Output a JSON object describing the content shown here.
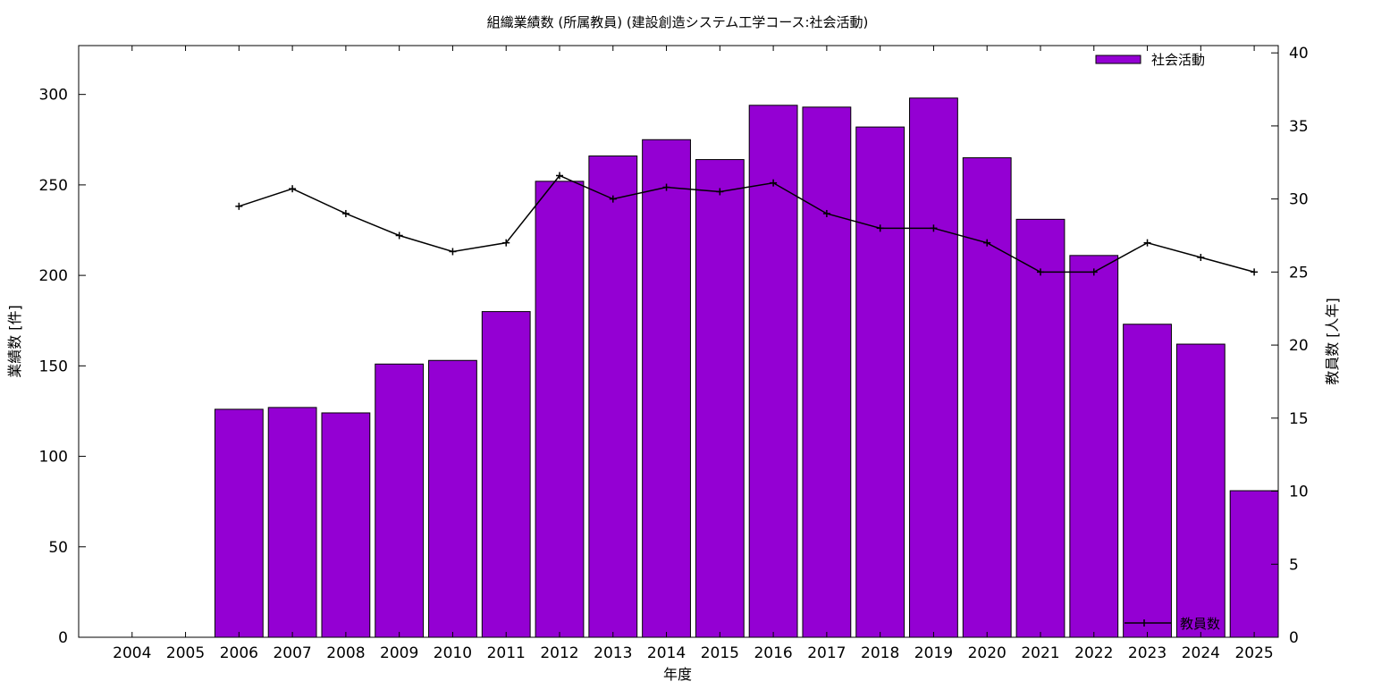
{
  "chart_data": {
    "type": "bar",
    "title": "組織業績数 (所属教員) (建設創造システム工学コース:社会活動)",
    "xlabel": "年度",
    "ylabel": "業績数 [件]",
    "y2label": "教員数 [人年]",
    "categories": [
      "2004",
      "2005",
      "2006",
      "2007",
      "2008",
      "2009",
      "2010",
      "2011",
      "2012",
      "2013",
      "2014",
      "2015",
      "2016",
      "2017",
      "2018",
      "2019",
      "2020",
      "2021",
      "2022",
      "2023",
      "2024",
      "2025"
    ],
    "ylim": [
      0,
      327
    ],
    "y2lim": [
      0,
      40.5
    ],
    "yticks": [
      0,
      50,
      100,
      150,
      200,
      250,
      300
    ],
    "y2ticks": [
      0,
      5,
      10,
      15,
      20,
      25,
      30,
      35,
      40
    ],
    "grid": false,
    "series": [
      {
        "name": "社会活動",
        "kind": "bar",
        "axis": "left",
        "color": "#9400d3",
        "values": [
          null,
          null,
          126,
          127,
          124,
          151,
          153,
          180,
          252,
          266,
          275,
          264,
          294,
          293,
          282,
          298,
          265,
          231,
          211,
          173,
          162,
          81
        ]
      },
      {
        "name": "教員数",
        "kind": "line",
        "axis": "right",
        "color": "#000000",
        "values": [
          null,
          null,
          29.5,
          30.7,
          29.0,
          27.5,
          26.4,
          27.0,
          31.6,
          30.0,
          30.8,
          30.5,
          31.1,
          29.0,
          28.0,
          28.0,
          27.0,
          25.0,
          25.0,
          27.0,
          26.0,
          25.0
        ]
      }
    ],
    "legend": {
      "bar_position": "top-right",
      "line_position": "bottom-right"
    }
  }
}
